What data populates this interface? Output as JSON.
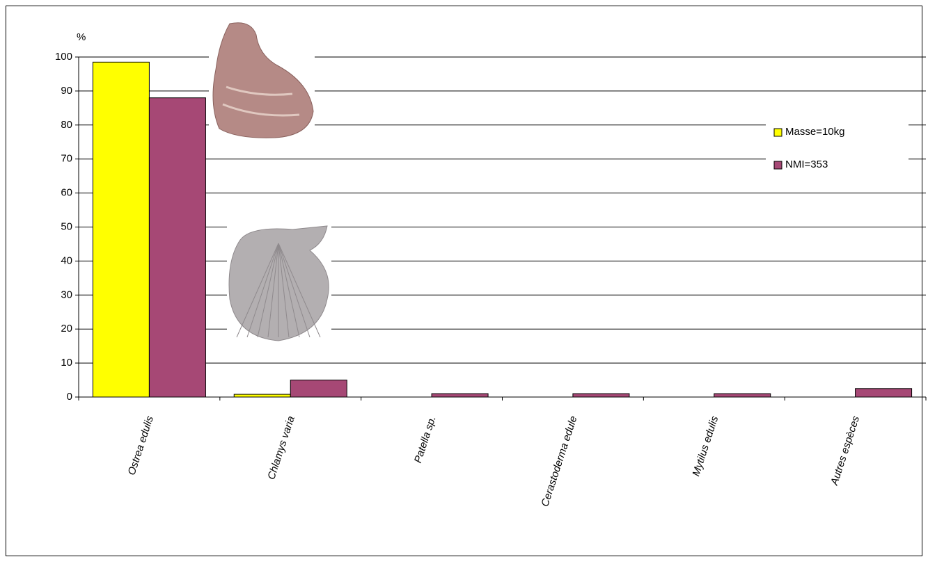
{
  "chart_data": {
    "type": "bar",
    "y_label": "%",
    "categories": [
      "Ostrea edulis",
      "Chlamys varia",
      "Patella sp.",
      "Cerastoderma edule",
      "Mytilus edulis",
      "Autres espèces"
    ],
    "series": [
      {
        "name": "Masse=10kg",
        "color": "#ffff00",
        "values": [
          98.5,
          0.8,
          0,
          0,
          0,
          0
        ]
      },
      {
        "name": "NMI=353",
        "color": "#a64875",
        "values": [
          88,
          5,
          1,
          1,
          1,
          2.5
        ]
      }
    ],
    "ylim": [
      0,
      100
    ],
    "yticks": [
      0,
      10,
      20,
      30,
      40,
      50,
      60,
      70,
      80,
      90,
      100
    ],
    "grid": true
  }
}
